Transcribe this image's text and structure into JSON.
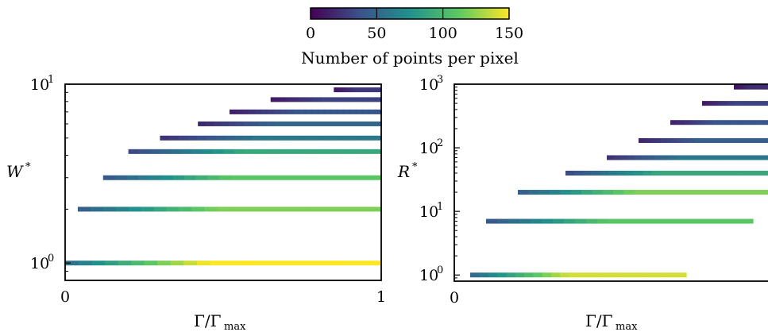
{
  "colorbar": {
    "label": "Number of points per pixel",
    "ticks": [
      "0",
      "50",
      "100",
      "150"
    ],
    "range": [
      0,
      150
    ],
    "colormap": [
      "#440154",
      "#3b528b",
      "#21918c",
      "#5ec962",
      "#fde725"
    ]
  },
  "chart_data": [
    {
      "type": "heatmap",
      "xlabel": "Γ/Γ",
      "xlabel_sub": "max",
      "ylabel": "W",
      "ylabel_sup": "*",
      "x_ticks": [
        "0",
        "1"
      ],
      "xlim": [
        0,
        1
      ],
      "y_scale": "log",
      "ylim": [
        0.8,
        10
      ],
      "y_ticks": [
        {
          "base": "10",
          "exp": "0",
          "value": 1
        },
        {
          "base": "10",
          "exp": "1",
          "value": 10
        }
      ],
      "bands": [
        {
          "y": 1,
          "x_start": 0.0,
          "x_end": 1.0,
          "intensity": 150
        },
        {
          "y": 2,
          "x_start": 0.04,
          "x_end": 1.0,
          "intensity": 120
        },
        {
          "y": 3,
          "x_start": 0.12,
          "x_end": 1.0,
          "intensity": 110
        },
        {
          "y": 4.2,
          "x_start": 0.2,
          "x_end": 1.0,
          "intensity": 90
        },
        {
          "y": 5,
          "x_start": 0.3,
          "x_end": 1.0,
          "intensity": 60
        },
        {
          "y": 6,
          "x_start": 0.42,
          "x_end": 1.0,
          "intensity": 50
        },
        {
          "y": 7,
          "x_start": 0.52,
          "x_end": 1.0,
          "intensity": 40
        },
        {
          "y": 8.2,
          "x_start": 0.65,
          "x_end": 1.0,
          "intensity": 30
        },
        {
          "y": 9.3,
          "x_start": 0.85,
          "x_end": 1.0,
          "intensity": 25
        }
      ]
    },
    {
      "type": "heatmap",
      "xlabel": "Γ/Γ",
      "xlabel_sub": "max",
      "ylabel": "R",
      "ylabel_sup": "*",
      "x_ticks": [
        "0"
      ],
      "xlim": [
        0,
        1
      ],
      "y_scale": "log",
      "ylim": [
        0.8,
        1000
      ],
      "y_ticks": [
        {
          "base": "10",
          "exp": "0",
          "value": 1
        },
        {
          "base": "10",
          "exp": "1",
          "value": 10
        },
        {
          "base": "10",
          "exp": "2",
          "value": 100
        },
        {
          "base": "10",
          "exp": "3",
          "value": 1000
        }
      ],
      "bands": [
        {
          "y": 1,
          "x_start": 0.05,
          "x_end": 0.73,
          "intensity": 140
        },
        {
          "y": 7,
          "x_start": 0.1,
          "x_end": 0.94,
          "intensity": 110
        },
        {
          "y": 20,
          "x_start": 0.2,
          "x_end": 1.0,
          "intensity": 120
        },
        {
          "y": 40,
          "x_start": 0.35,
          "x_end": 1.0,
          "intensity": 90
        },
        {
          "y": 70,
          "x_start": 0.48,
          "x_end": 1.0,
          "intensity": 60
        },
        {
          "y": 130,
          "x_start": 0.58,
          "x_end": 1.0,
          "intensity": 45
        },
        {
          "y": 250,
          "x_start": 0.68,
          "x_end": 1.0,
          "intensity": 40
        },
        {
          "y": 500,
          "x_start": 0.78,
          "x_end": 1.0,
          "intensity": 30
        },
        {
          "y": 900,
          "x_start": 0.88,
          "x_end": 1.0,
          "intensity": 20
        }
      ]
    }
  ]
}
